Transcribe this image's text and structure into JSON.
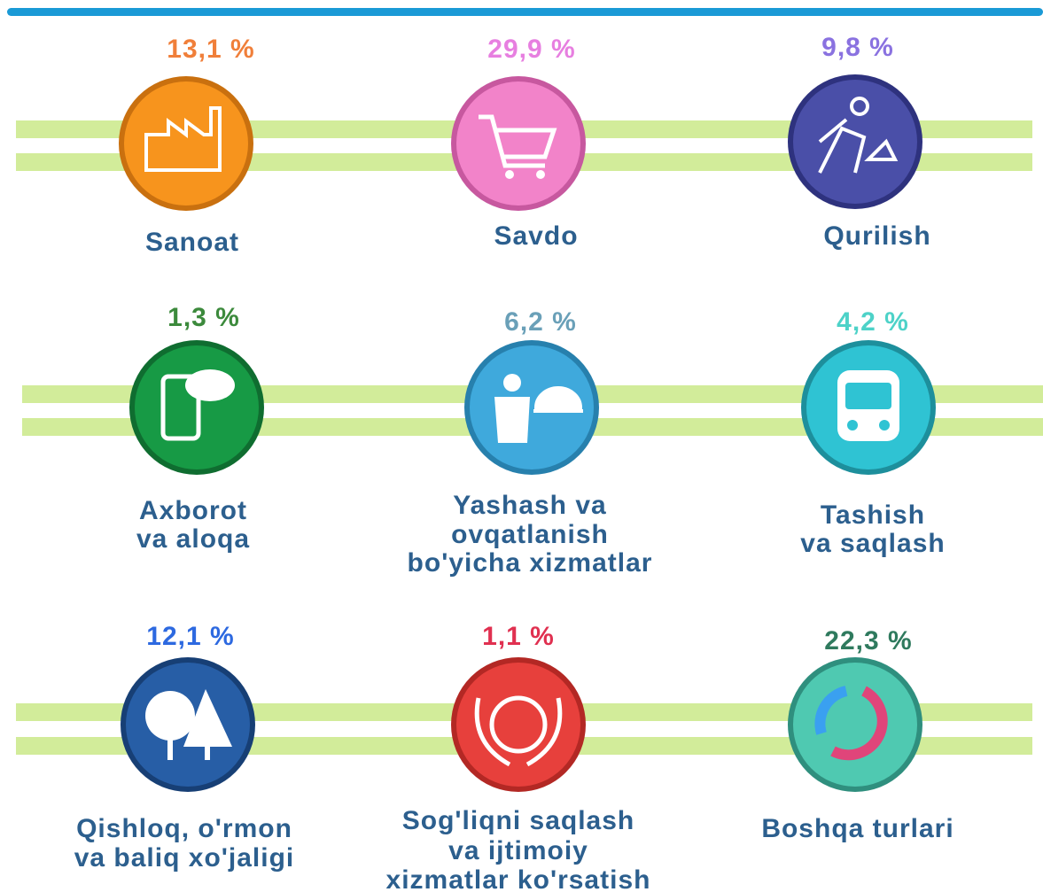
{
  "items": [
    {
      "value": "13,1 %",
      "label": [
        "Sanoat"
      ]
    },
    {
      "value": "29,9 %",
      "label": [
        "Savdo"
      ]
    },
    {
      "value": "9,8 %",
      "label": [
        "Qurilish"
      ]
    },
    {
      "value": "1,3 %",
      "label": [
        "Axborot",
        "va aloqa"
      ]
    },
    {
      "value": "6,2 %",
      "label": [
        "Yashash va",
        "ovqatlanish",
        "bo'yicha xizmatlar"
      ]
    },
    {
      "value": "4,2 %",
      "label": [
        "Tashish",
        "va saqlash"
      ]
    },
    {
      "value": "12,1 %",
      "label": [
        "Qishloq, o'rmon",
        "va baliq xo'jaligi"
      ]
    },
    {
      "value": "1,1 %",
      "label": [
        "Sog'liqni saqlash",
        "va ijtimoiy",
        "xizmatlar ko'rsatish"
      ]
    },
    {
      "value": "22,3 %",
      "label": [
        "Boshqa turlari"
      ]
    }
  ]
}
